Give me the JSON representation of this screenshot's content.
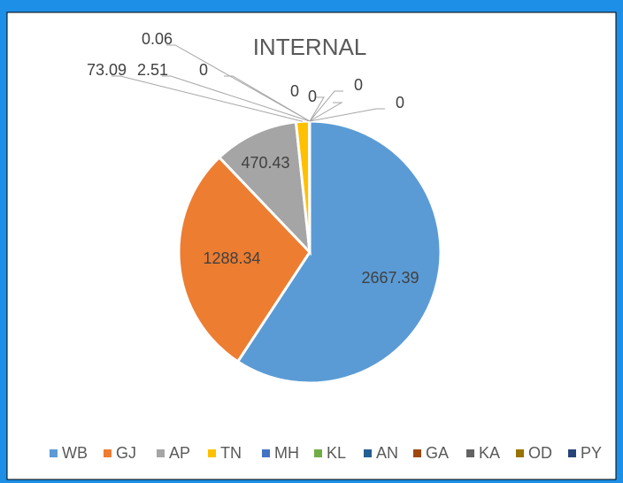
{
  "chart_data": {
    "type": "pie",
    "title": "INTERNAL",
    "categories": [
      "WB",
      "GJ",
      "AP",
      "TN",
      "MH",
      "KL",
      "AN",
      "GA",
      "KA",
      "OD",
      "PY"
    ],
    "values": [
      2667.39,
      1288.34,
      470.43,
      73.09,
      2.51,
      0.06,
      0,
      0,
      0,
      0,
      0
    ],
    "colors": [
      "#5b9bd5",
      "#ed7d31",
      "#a5a5a5",
      "#ffc000",
      "#4472c4",
      "#70ad47",
      "#255e91",
      "#9e480e",
      "#636363",
      "#997300",
      "#264478"
    ],
    "legend": "bottom"
  }
}
